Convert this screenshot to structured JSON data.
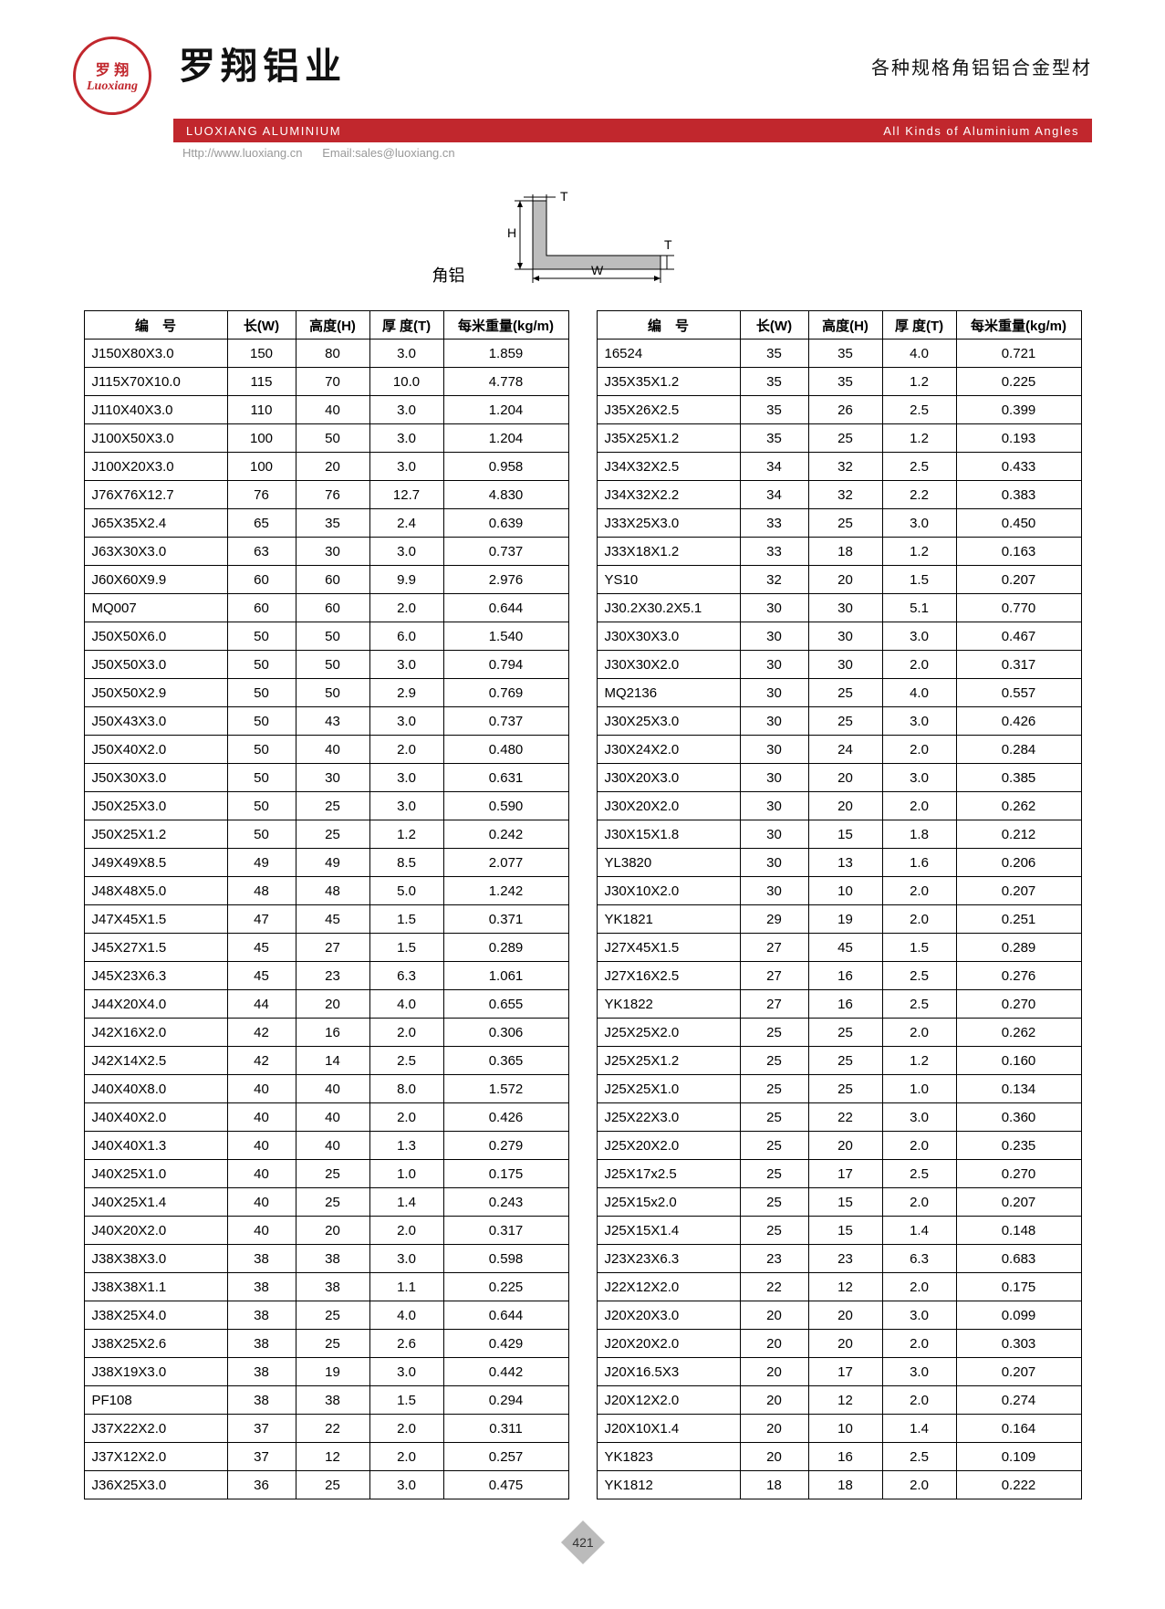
{
  "header": {
    "logo_top": "罗 翔",
    "logo_bottom": "Luoxiang",
    "company_cn": "罗翔铝业",
    "right_cn": "各种规格角铝铝合金型材",
    "red_bar_left": "LUOXIANG ALUMINIUM",
    "red_bar_right": "All Kinds of Aluminium Angles",
    "url": "Http://www.luoxiang.cn",
    "email": "Email:sales@luoxiang.cn"
  },
  "diagram": {
    "label": "角铝",
    "H": "H",
    "T": "T",
    "W": "W",
    "profile_fill": "#bdbdbd",
    "stroke": "#000000"
  },
  "columns": {
    "code": "编　号",
    "w": "长(W)",
    "h": "高度(H)",
    "t": "厚 度(T)",
    "kg": "每米重量(kg/m)"
  },
  "table_left": [
    [
      "J150X80X3.0",
      "150",
      "80",
      "3.0",
      "1.859"
    ],
    [
      "J115X70X10.0",
      "115",
      "70",
      "10.0",
      "4.778"
    ],
    [
      "J110X40X3.0",
      "110",
      "40",
      "3.0",
      "1.204"
    ],
    [
      "J100X50X3.0",
      "100",
      "50",
      "3.0",
      "1.204"
    ],
    [
      "J100X20X3.0",
      "100",
      "20",
      "3.0",
      "0.958"
    ],
    [
      "J76X76X12.7",
      "76",
      "76",
      "12.7",
      "4.830"
    ],
    [
      "J65X35X2.4",
      "65",
      "35",
      "2.4",
      "0.639"
    ],
    [
      "J63X30X3.0",
      "63",
      "30",
      "3.0",
      "0.737"
    ],
    [
      "J60X60X9.9",
      "60",
      "60",
      "9.9",
      "2.976"
    ],
    [
      "MQ007",
      "60",
      "60",
      "2.0",
      "0.644"
    ],
    [
      "J50X50X6.0",
      "50",
      "50",
      "6.0",
      "1.540"
    ],
    [
      "J50X50X3.0",
      "50",
      "50",
      "3.0",
      "0.794"
    ],
    [
      "J50X50X2.9",
      "50",
      "50",
      "2.9",
      "0.769"
    ],
    [
      "J50X43X3.0",
      "50",
      "43",
      "3.0",
      "0.737"
    ],
    [
      "J50X40X2.0",
      "50",
      "40",
      "2.0",
      "0.480"
    ],
    [
      "J50X30X3.0",
      "50",
      "30",
      "3.0",
      "0.631"
    ],
    [
      "J50X25X3.0",
      "50",
      "25",
      "3.0",
      "0.590"
    ],
    [
      "J50X25X1.2",
      "50",
      "25",
      "1.2",
      "0.242"
    ],
    [
      "J49X49X8.5",
      "49",
      "49",
      "8.5",
      "2.077"
    ],
    [
      "J48X48X5.0",
      "48",
      "48",
      "5.0",
      "1.242"
    ],
    [
      "J47X45X1.5",
      "47",
      "45",
      "1.5",
      "0.371"
    ],
    [
      "J45X27X1.5",
      "45",
      "27",
      "1.5",
      "0.289"
    ],
    [
      "J45X23X6.3",
      "45",
      "23",
      "6.3",
      "1.061"
    ],
    [
      "J44X20X4.0",
      "44",
      "20",
      "4.0",
      "0.655"
    ],
    [
      "J42X16X2.0",
      "42",
      "16",
      "2.0",
      "0.306"
    ],
    [
      "J42X14X2.5",
      "42",
      "14",
      "2.5",
      "0.365"
    ],
    [
      "J40X40X8.0",
      "40",
      "40",
      "8.0",
      "1.572"
    ],
    [
      "J40X40X2.0",
      "40",
      "40",
      "2.0",
      "0.426"
    ],
    [
      "J40X40X1.3",
      "40",
      "40",
      "1.3",
      "0.279"
    ],
    [
      "J40X25X1.0",
      "40",
      "25",
      "1.0",
      "0.175"
    ],
    [
      "J40X25X1.4",
      "40",
      "25",
      "1.4",
      "0.243"
    ],
    [
      "J40X20X2.0",
      "40",
      "20",
      "2.0",
      "0.317"
    ],
    [
      "J38X38X3.0",
      "38",
      "38",
      "3.0",
      "0.598"
    ],
    [
      "J38X38X1.1",
      "38",
      "38",
      "1.1",
      "0.225"
    ],
    [
      "J38X25X4.0",
      "38",
      "25",
      "4.0",
      "0.644"
    ],
    [
      "J38X25X2.6",
      "38",
      "25",
      "2.6",
      "0.429"
    ],
    [
      "J38X19X3.0",
      "38",
      "19",
      "3.0",
      "0.442"
    ],
    [
      "PF108",
      "38",
      "38",
      "1.5",
      "0.294"
    ],
    [
      "J37X22X2.0",
      "37",
      "22",
      "2.0",
      "0.311"
    ],
    [
      "J37X12X2.0",
      "37",
      "12",
      "2.0",
      "0.257"
    ],
    [
      "J36X25X3.0",
      "36",
      "25",
      "3.0",
      "0.475"
    ]
  ],
  "table_right": [
    [
      "16524",
      "35",
      "35",
      "4.0",
      "0.721"
    ],
    [
      "J35X35X1.2",
      "35",
      "35",
      "1.2",
      "0.225"
    ],
    [
      "J35X26X2.5",
      "35",
      "26",
      "2.5",
      "0.399"
    ],
    [
      "J35X25X1.2",
      "35",
      "25",
      "1.2",
      "0.193"
    ],
    [
      "J34X32X2.5",
      "34",
      "32",
      "2.5",
      "0.433"
    ],
    [
      "J34X32X2.2",
      "34",
      "32",
      "2.2",
      "0.383"
    ],
    [
      "J33X25X3.0",
      "33",
      "25",
      "3.0",
      "0.450"
    ],
    [
      "J33X18X1.2",
      "33",
      "18",
      "1.2",
      "0.163"
    ],
    [
      "YS10",
      "32",
      "20",
      "1.5",
      "0.207"
    ],
    [
      "J30.2X30.2X5.1",
      "30",
      "30",
      "5.1",
      "0.770"
    ],
    [
      "J30X30X3.0",
      "30",
      "30",
      "3.0",
      "0.467"
    ],
    [
      "J30X30X2.0",
      "30",
      "30",
      "2.0",
      "0.317"
    ],
    [
      "MQ2136",
      "30",
      "25",
      "4.0",
      "0.557"
    ],
    [
      "J30X25X3.0",
      "30",
      "25",
      "3.0",
      "0.426"
    ],
    [
      "J30X24X2.0",
      "30",
      "24",
      "2.0",
      "0.284"
    ],
    [
      "J30X20X3.0",
      "30",
      "20",
      "3.0",
      "0.385"
    ],
    [
      "J30X20X2.0",
      "30",
      "20",
      "2.0",
      "0.262"
    ],
    [
      "J30X15X1.8",
      "30",
      "15",
      "1.8",
      "0.212"
    ],
    [
      "YL3820",
      "30",
      "13",
      "1.6",
      "0.206"
    ],
    [
      "J30X10X2.0",
      "30",
      "10",
      "2.0",
      "0.207"
    ],
    [
      "YK1821",
      "29",
      "19",
      "2.0",
      "0.251"
    ],
    [
      "J27X45X1.5",
      "27",
      "45",
      "1.5",
      "0.289"
    ],
    [
      "J27X16X2.5",
      "27",
      "16",
      "2.5",
      "0.276"
    ],
    [
      "YK1822",
      "27",
      "16",
      "2.5",
      "0.270"
    ],
    [
      "J25X25X2.0",
      "25",
      "25",
      "2.0",
      "0.262"
    ],
    [
      "J25X25X1.2",
      "25",
      "25",
      "1.2",
      "0.160"
    ],
    [
      "J25X25X1.0",
      "25",
      "25",
      "1.0",
      "0.134"
    ],
    [
      "J25X22X3.0",
      "25",
      "22",
      "3.0",
      "0.360"
    ],
    [
      "J25X20X2.0",
      "25",
      "20",
      "2.0",
      "0.235"
    ],
    [
      "J25X17x2.5",
      "25",
      "17",
      "2.5",
      "0.270"
    ],
    [
      "J25X15x2.0",
      "25",
      "15",
      "2.0",
      "0.207"
    ],
    [
      "J25X15X1.4",
      "25",
      "15",
      "1.4",
      "0.148"
    ],
    [
      "J23X23X6.3",
      "23",
      "23",
      "6.3",
      "0.683"
    ],
    [
      "J22X12X2.0",
      "22",
      "12",
      "2.0",
      "0.175"
    ],
    [
      "J20X20X3.0",
      "20",
      "20",
      "3.0",
      "0.099"
    ],
    [
      "J20X20X2.0",
      "20",
      "20",
      "2.0",
      "0.303"
    ],
    [
      "J20X16.5X3",
      "20",
      "17",
      "3.0",
      "0.207"
    ],
    [
      "J20X12X2.0",
      "20",
      "12",
      "2.0",
      "0.274"
    ],
    [
      "J20X10X1.4",
      "20",
      "10",
      "1.4",
      "0.164"
    ],
    [
      "YK1823",
      "20",
      "16",
      "2.5",
      "0.109"
    ],
    [
      "YK1812",
      "18",
      "18",
      "2.0",
      "0.222"
    ]
  ],
  "page_number": "421"
}
